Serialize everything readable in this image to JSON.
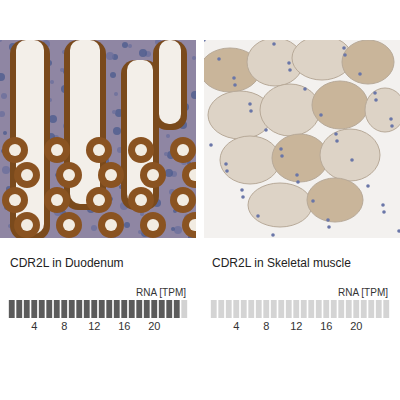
{
  "chart_data": [
    {
      "type": "bar",
      "title": "CDR2L in Duodenum",
      "subtitle": "RNA [TPM]",
      "x": [
        1,
        2,
        3,
        4,
        5,
        6,
        7,
        8,
        9,
        10,
        11,
        12,
        13,
        14,
        15,
        16,
        17,
        18,
        19,
        20,
        21,
        22,
        23,
        24
      ],
      "values": [
        1,
        1,
        1,
        1,
        1,
        1,
        1,
        1,
        1,
        1,
        1,
        1,
        1,
        1,
        1,
        1,
        1,
        1,
        1,
        1,
        1,
        1,
        1,
        1
      ],
      "colors": [
        "#5b5b5b",
        "#5b5b5b",
        "#5b5b5b",
        "#5b5b5b",
        "#5b5b5b",
        "#5b5b5b",
        "#5b5b5b",
        "#5b5b5b",
        "#5b5b5b",
        "#5b5b5b",
        "#5b5b5b",
        "#5b5b5b",
        "#5b5b5b",
        "#5b5b5b",
        "#5b5b5b",
        "#5b5b5b",
        "#5b5b5b",
        "#5b5b5b",
        "#5b5b5b",
        "#5b5b5b",
        "#5b5b5b",
        "#5b5b5b",
        "#5b5b5b",
        "#d2d2d2"
      ],
      "xlim": [
        0.5,
        24.5
      ],
      "ylim": [
        0,
        1
      ],
      "xticks": [
        4,
        8,
        12,
        16,
        20
      ],
      "tick_labels": "x",
      "grid": false
    },
    {
      "type": "bar",
      "title": "CDR2L in Skeletal muscle",
      "subtitle": "RNA [TPM]",
      "x": [
        1,
        2,
        3,
        4,
        5,
        6,
        7,
        8,
        9,
        10,
        11,
        12,
        13,
        14,
        15,
        16,
        17,
        18,
        19,
        20,
        21,
        22,
        23,
        24
      ],
      "values": [
        1,
        1,
        1,
        1,
        1,
        1,
        1,
        1,
        1,
        1,
        1,
        1,
        1,
        1,
        1,
        1,
        1,
        1,
        1,
        1,
        1,
        1,
        1,
        1
      ],
      "colors": [
        "#d4d4d4",
        "#d4d4d4",
        "#d4d4d4",
        "#d4d4d4",
        "#d4d4d4",
        "#d4d4d4",
        "#d4d4d4",
        "#d4d4d4",
        "#d4d4d4",
        "#d4d4d4",
        "#d4d4d4",
        "#d4d4d4",
        "#d4d4d4",
        "#d4d4d4",
        "#d4d4d4",
        "#d4d4d4",
        "#d4d4d4",
        "#d4d4d4",
        "#d4d4d4",
        "#d4d4d4",
        "#d4d4d4",
        "#d4d4d4",
        "#d4d4d4",
        "#d4d4d4"
      ],
      "xlim": [
        0.5,
        24.5
      ],
      "ylim": [
        0,
        1
      ],
      "xticks": [
        4,
        8,
        12,
        16,
        20
      ],
      "tick_labels": "x",
      "grid": false
    }
  ]
}
